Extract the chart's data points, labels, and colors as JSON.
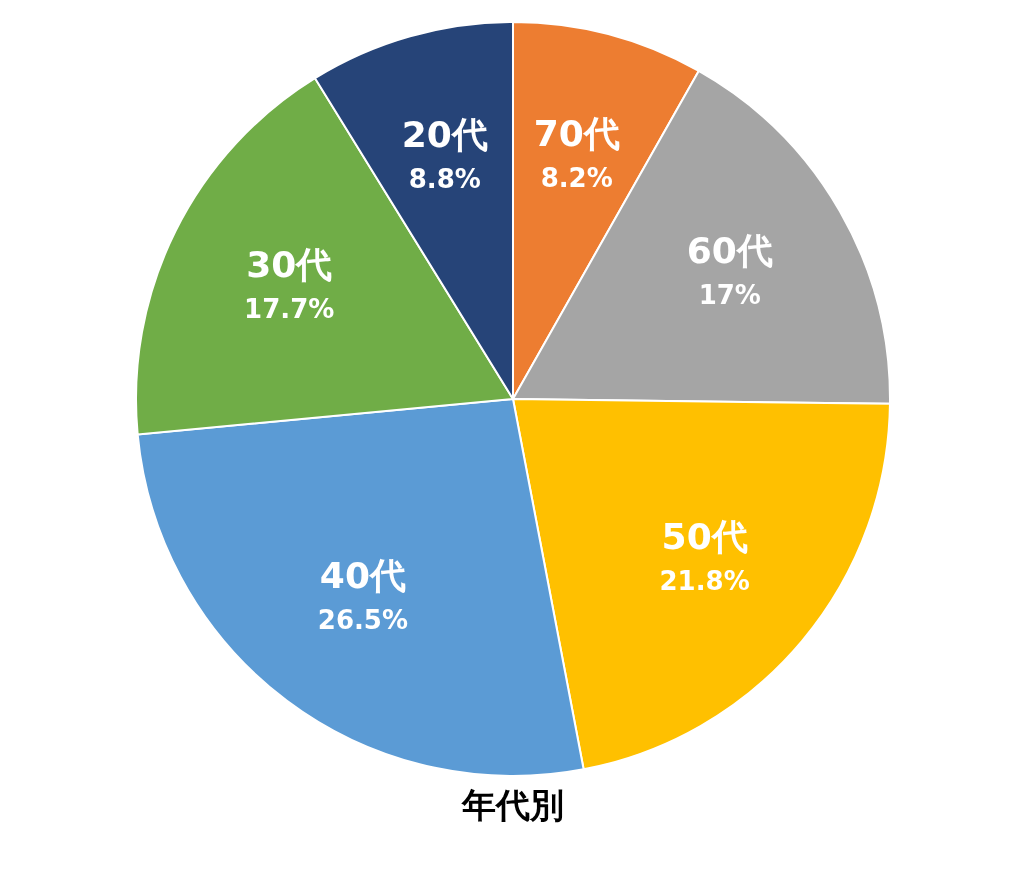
{
  "chart_data": {
    "type": "pie",
    "title": "年代別",
    "categories": [
      "70代",
      "60代",
      "50代",
      "40代",
      "30代",
      "20代"
    ],
    "values": [
      8.2,
      17,
      21.8,
      26.5,
      17.7,
      8.8
    ],
    "value_labels": [
      "8.2%",
      "17%",
      "21.8%",
      "26.5%",
      "17.7%",
      "8.8%"
    ],
    "colors": [
      "#ed7d31",
      "#a5a5a5",
      "#ffc000",
      "#5b9bd5",
      "#70ad47",
      "#264478"
    ],
    "legend": false
  }
}
